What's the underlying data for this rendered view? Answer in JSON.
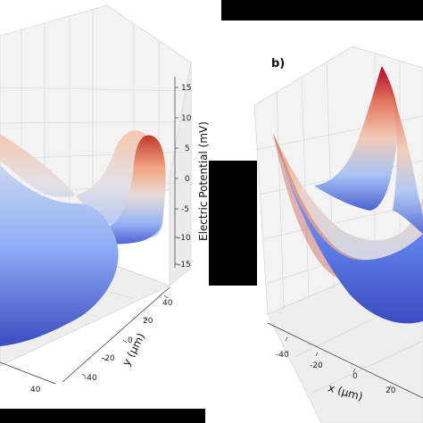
{
  "chart_data": [
    {
      "type": "surface3d",
      "panel_label": "",
      "zlabel": "Electric Potential (mV)",
      "zticks": [
        "15",
        "10",
        "5",
        "0",
        "-5",
        "-10",
        "-15"
      ],
      "ylabel": "y (μm)",
      "yticks": [
        "40",
        "20",
        "0",
        "-20",
        "-40"
      ],
      "xticks": [
        "40"
      ],
      "colormap": "coolwarm",
      "shape": "saddle: high at back-right, dip at centre, low front-left"
    },
    {
      "type": "surface3d",
      "panel_label": "b)",
      "xlabel": "x (μm)",
      "xticks": [
        "-40",
        "-20",
        "0",
        "20"
      ],
      "colormap": "coolwarm",
      "shape": "saddle: peaks at back-right and left corners, blue minimum in front"
    }
  ],
  "colors": {
    "cool": "#3b4cc0",
    "neutral": "#dddddd",
    "warm": "#b40426",
    "pane": "#f2f2f2",
    "mask": "#000000"
  }
}
